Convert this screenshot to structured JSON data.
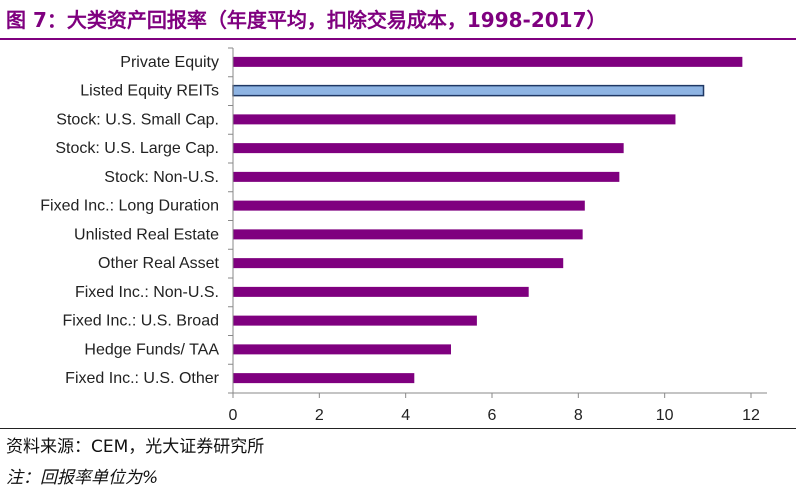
{
  "header": {
    "title": "图 7：大类资产回报率（年度平均，扣除交易成本，1998-2017）"
  },
  "footer": {
    "source": "资料来源：CEM，光大证券研究所",
    "note": "注：回报率单位为%"
  },
  "colors": {
    "accent": "#7F007F",
    "highlight_fill": "#8EB4E3",
    "highlight_stroke": "#1F3864"
  },
  "chart_data": {
    "type": "bar",
    "orientation": "horizontal",
    "title": "",
    "xlabel": "",
    "ylabel": "",
    "categories": [
      "Private Equity",
      "Listed Equity REITs",
      "Stock: U.S. Small Cap.",
      "Stock: U.S. Large Cap.",
      "Stock: Non-U.S.",
      "Fixed Inc.: Long Duration",
      "Unlisted Real Estate",
      "Other Real Asset",
      "Fixed Inc.: Non-U.S.",
      "Fixed Inc.: U.S. Broad",
      "Hedge Funds/ TAA",
      "Fixed Inc.: U.S. Other"
    ],
    "values": [
      11.8,
      10.9,
      10.25,
      9.05,
      8.95,
      8.15,
      8.1,
      7.65,
      6.85,
      5.65,
      5.05,
      4.2
    ],
    "highlight": [
      "Listed Equity REITs"
    ],
    "xlim": [
      0,
      12
    ],
    "xticks": [
      0,
      2,
      4,
      6,
      8,
      10,
      12
    ],
    "grid": false,
    "legend": false
  }
}
